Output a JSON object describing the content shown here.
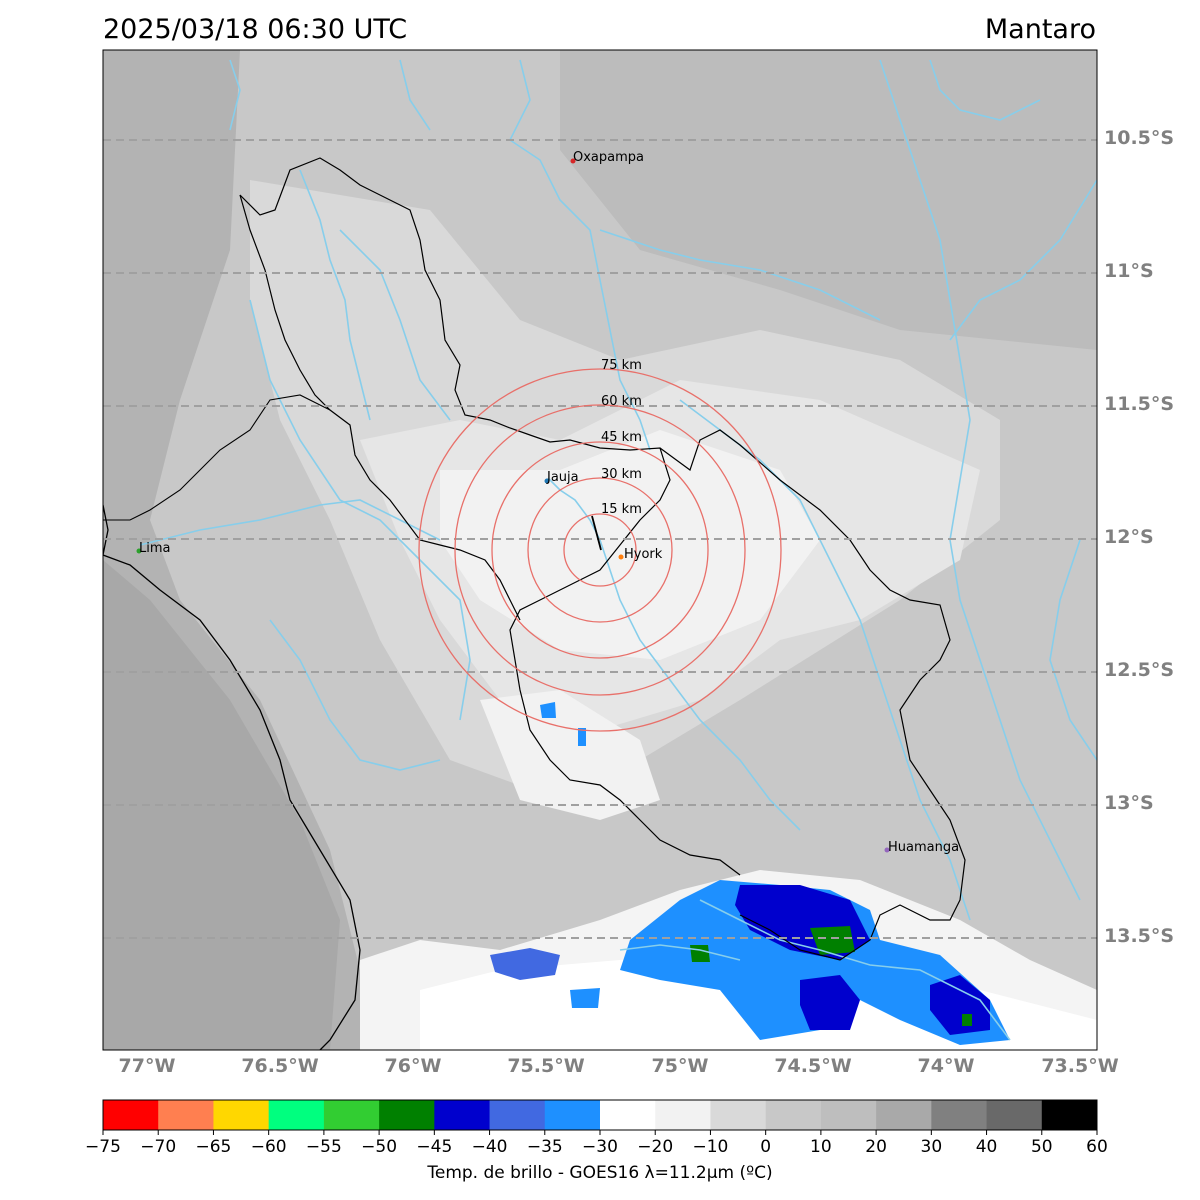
{
  "header": {
    "datetime": "2025/03/18 06:30 UTC",
    "region": "Mantaro"
  },
  "map": {
    "lat_labels": [
      "10.5°S",
      "11°S",
      "11.5°S",
      "12°S",
      "12.5°S",
      "13°S",
      "13.5°S"
    ],
    "lon_labels": [
      "77°W",
      "76.5°W",
      "76°W",
      "75.5°W",
      "75°W",
      "74.5°W",
      "74°W",
      "73.5°W"
    ],
    "cities": [
      {
        "name": "Oxapampa",
        "color": "#d62728"
      },
      {
        "name": "Jauja",
        "color": "#1f77b4"
      },
      {
        "name": "Hyork",
        "color": "#ff7f0e"
      },
      {
        "name": "Lima",
        "color": "#2ca02c"
      },
      {
        "name": "Huamanga",
        "color": "#9467bd"
      }
    ],
    "ring_labels": [
      "15 km",
      "30 km",
      "45 km",
      "60 km",
      "75 km"
    ],
    "ring_color": "#e8706a",
    "river_color": "#87ceeb",
    "boundary_color": "#000000"
  },
  "colorbar": {
    "ticks": [
      "−75",
      "−70",
      "−65",
      "−60",
      "−55",
      "−50",
      "−45",
      "−40",
      "−35",
      "−30",
      "−20",
      "−10",
      "0",
      "10",
      "20",
      "30",
      "40",
      "50",
      "60"
    ],
    "colors": [
      "#ff0000",
      "#ff7f50",
      "#ffd700",
      "#00ff7f",
      "#32cd32",
      "#008000",
      "#0000cd",
      "#4169e1",
      "#1e90ff",
      "#ffffff",
      "#f2f2f2",
      "#d9d9d9",
      "#c8c8c8",
      "#bebebe",
      "#a9a9a9",
      "#808080",
      "#696969",
      "#000000"
    ],
    "label": "Temp. de brillo - GOES16 λ=11.2μm (ºC)"
  }
}
